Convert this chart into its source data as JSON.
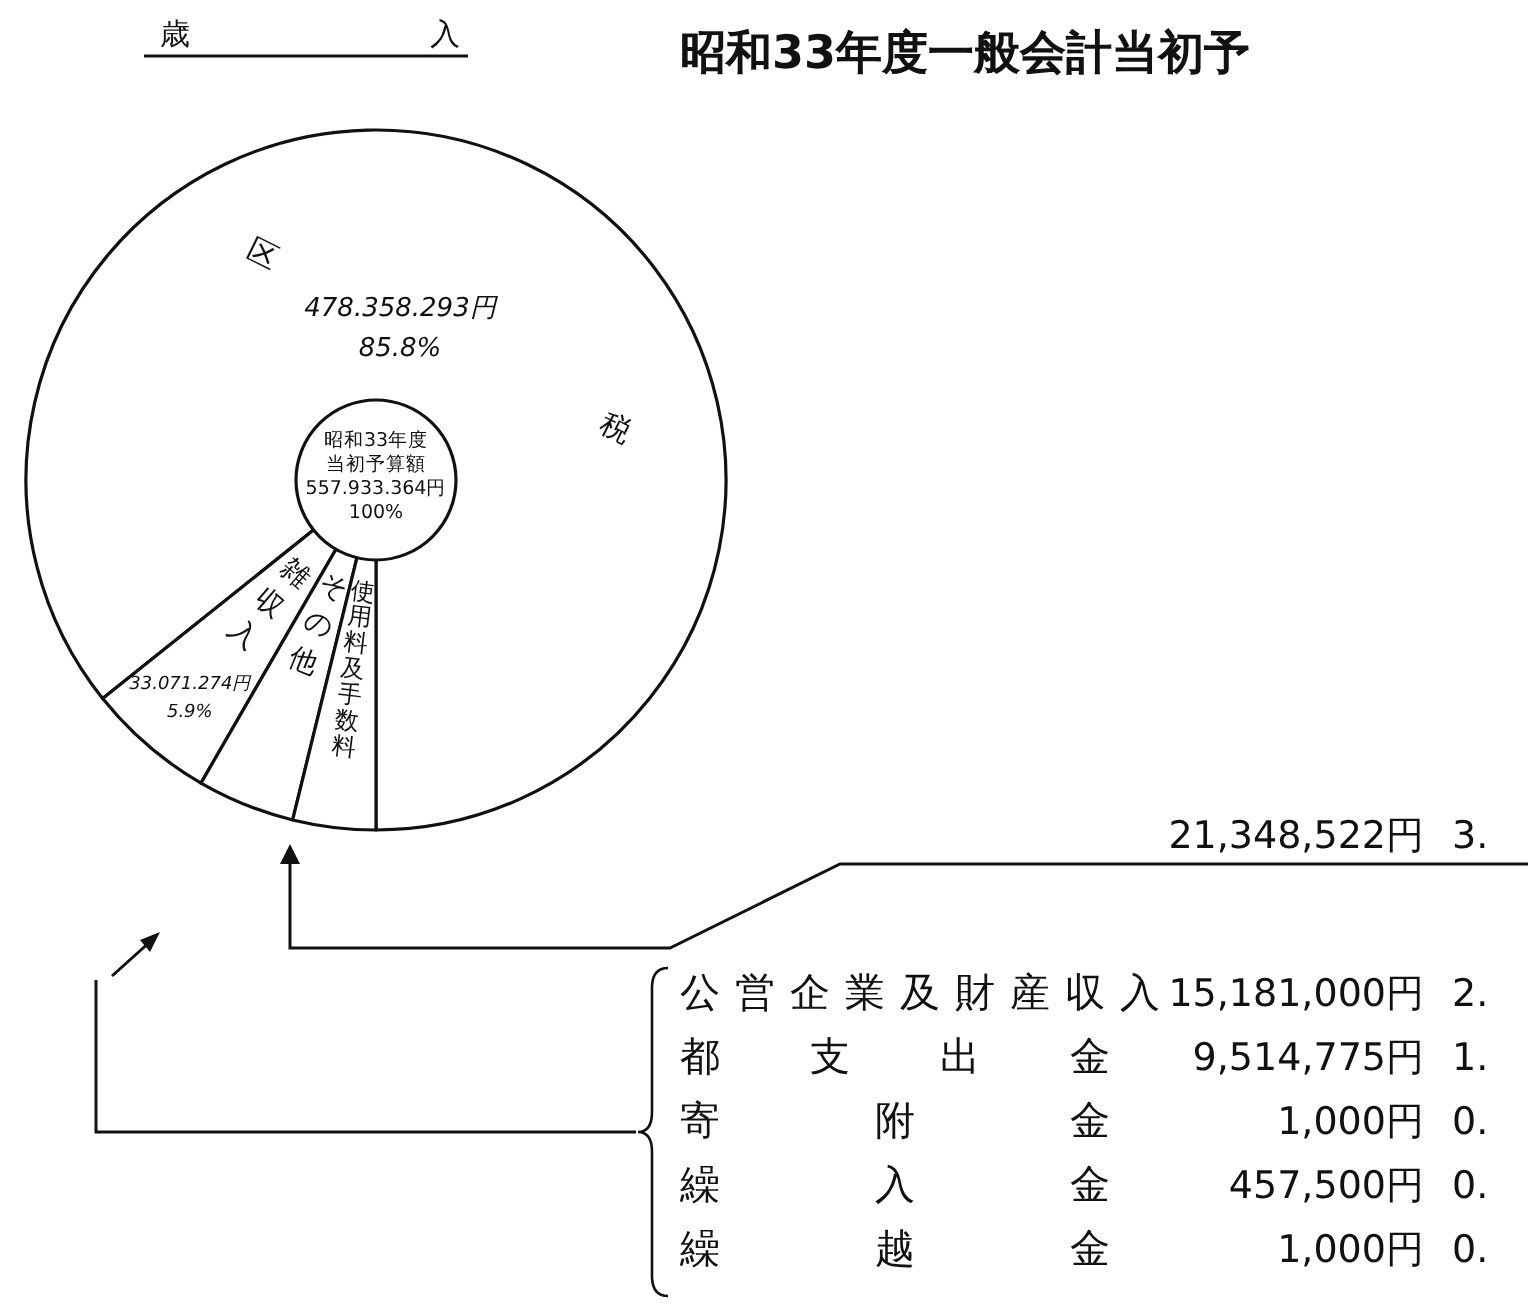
{
  "chart_data": {
    "type": "donut",
    "title": "昭和33年度一般会計当初予",
    "subtitle": "歳入",
    "categories": [
      "区税",
      "雑収入",
      "その他",
      "使用料及手数料"
    ],
    "values": [
      478358293,
      33071274,
      25155275,
      21348522
    ],
    "colors": [
      "#ffffff",
      "#ffffff",
      "#ffffff",
      "#ffffff"
    ],
    "value_labels": [
      "478.358.293円\n85.8%",
      "33.071.274円\n5.9%",
      null,
      null
    ],
    "annotations": [
      "昭和33年度",
      "当初予算額",
      "557.933.364円",
      "100%",
      "21,348,522円",
      "3.",
      "公営企業及財産収入",
      "15,181,000円",
      "2.",
      "都支出金",
      "9,514,775円",
      "1.",
      "寄附金",
      "1,000円",
      "0.",
      "繰入金",
      "457,500円",
      "0.",
      "繰越金",
      "1,000円",
      "0."
    ]
  }
}
